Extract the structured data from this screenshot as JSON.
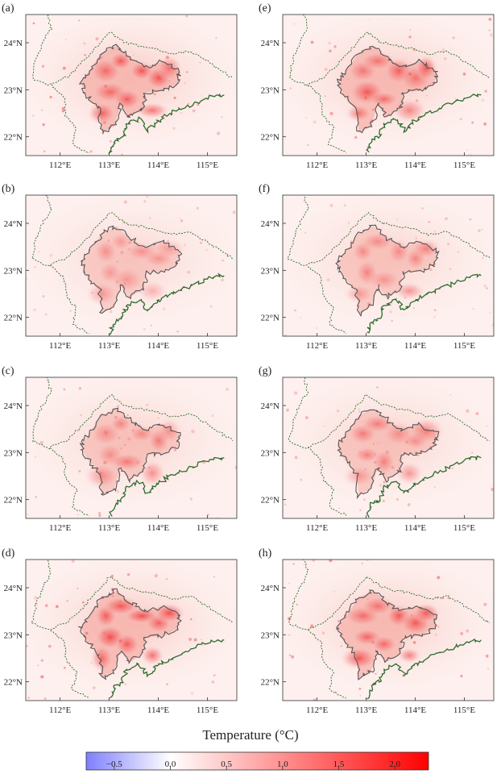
{
  "chart_data": {
    "type": "heatmap",
    "panels": [
      {
        "label": "(a)",
        "intensity": 1.0
      },
      {
        "label": "(b)",
        "intensity": 0.45
      },
      {
        "label": "(c)",
        "intensity": 0.6
      },
      {
        "label": "(d)",
        "intensity": 1.0
      },
      {
        "label": "(e)",
        "intensity": 0.95
      },
      {
        "label": "(f)",
        "intensity": 0.55
      },
      {
        "label": "(g)",
        "intensity": 0.6
      },
      {
        "label": "(h)",
        "intensity": 0.95
      }
    ],
    "x_ticks": [
      {
        "value": 112,
        "label": "112°E"
      },
      {
        "value": 113,
        "label": "113°E"
      },
      {
        "value": 114,
        "label": "114°E"
      },
      {
        "value": 115,
        "label": "115°E"
      }
    ],
    "y_ticks": [
      {
        "value": 24,
        "label": "24°N"
      },
      {
        "value": 23,
        "label": "23°N"
      },
      {
        "value": 22,
        "label": "22°N"
      }
    ],
    "xlim": [
      111.3,
      115.6
    ],
    "ylim": [
      21.6,
      24.6
    ],
    "colorbar": {
      "title": "Temperature (°C)",
      "range": [
        -0.75,
        2.3
      ],
      "ticks": [
        {
          "value": -0.5,
          "label": "−0.5"
        },
        {
          "value": 0.0,
          "label": "0.0"
        },
        {
          "value": 0.5,
          "label": "0.5"
        },
        {
          "value": 1.0,
          "label": "1.0"
        },
        {
          "value": 1.5,
          "label": "1.5"
        },
        {
          "value": 2.0,
          "label": "2.0"
        }
      ],
      "colors": {
        "min": "#7f7fff",
        "zero": "#ffffff",
        "max": "#ff0000"
      }
    },
    "colors": {
      "boundary": "#2e6b2e",
      "urban_outline": "#555555",
      "background_tint": "#fdf0ee"
    }
  }
}
